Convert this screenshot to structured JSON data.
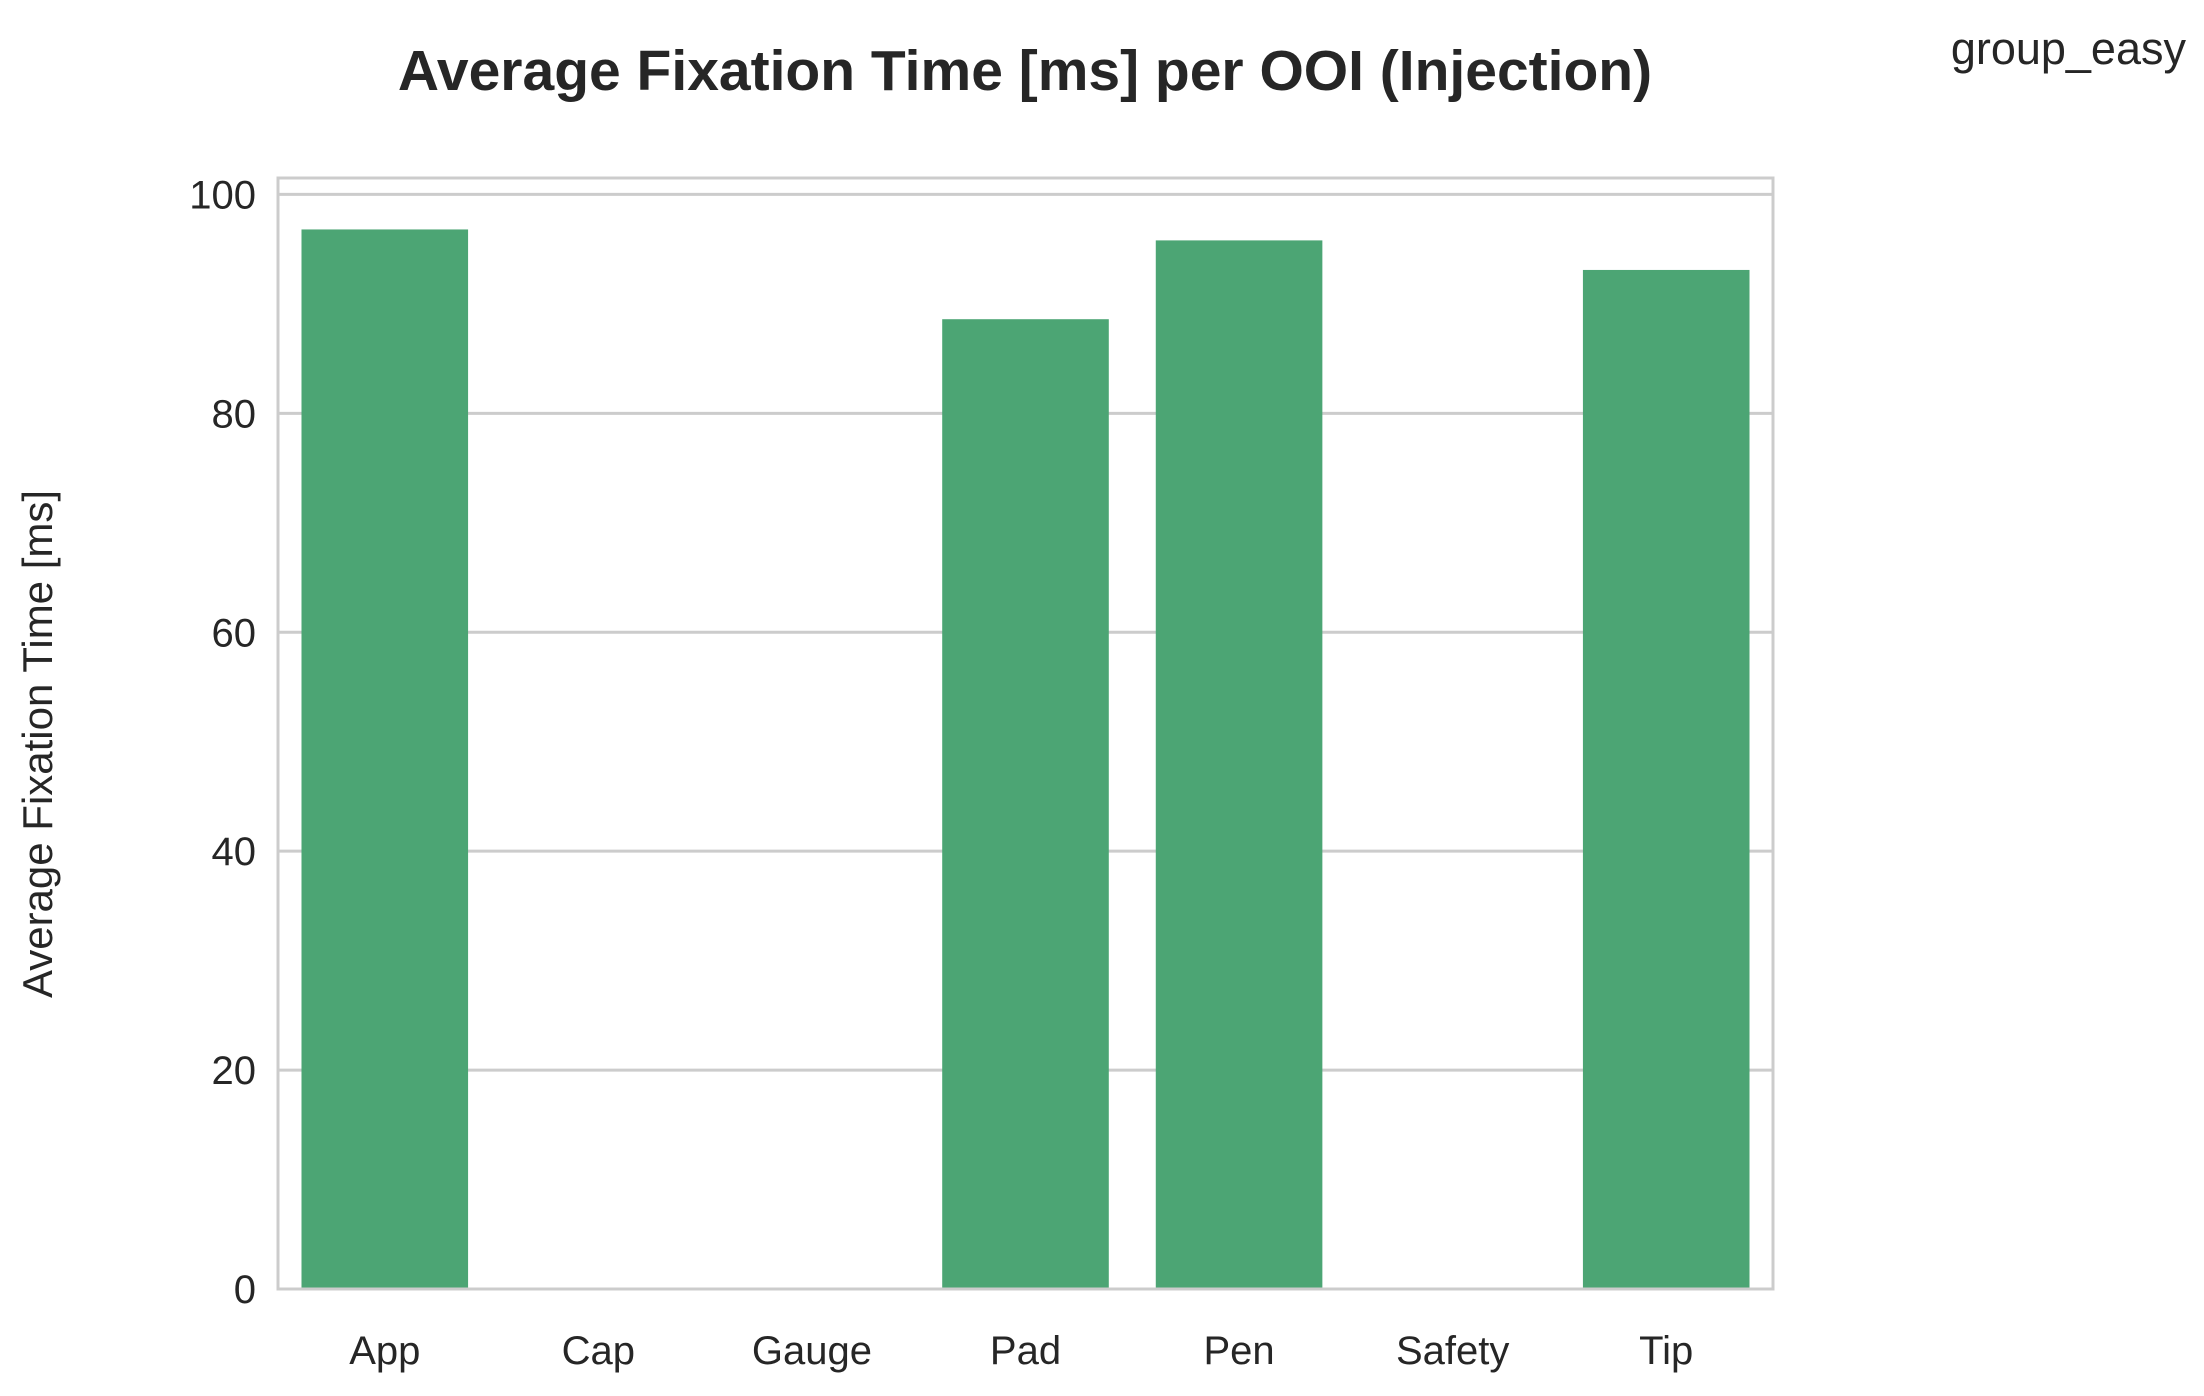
{
  "chart_data": {
    "type": "bar",
    "title": "Average Fixation Time [ms] per OOI (Injection)",
    "xlabel": "",
    "ylabel": "Average Fixation Time [ms]",
    "legend_label": "group_easy",
    "legend_position": "top-right",
    "categories": [
      "App",
      "Cap",
      "Gauge",
      "Pad",
      "Pen",
      "Safety",
      "Tip"
    ],
    "values": [
      96.8,
      0,
      0,
      88.6,
      95.8,
      0,
      93.1
    ],
    "yticks": [
      0,
      20,
      40,
      60,
      80,
      100
    ],
    "ylim": [
      0,
      101.5
    ],
    "grid": true,
    "bar_color": "#4ca574"
  }
}
